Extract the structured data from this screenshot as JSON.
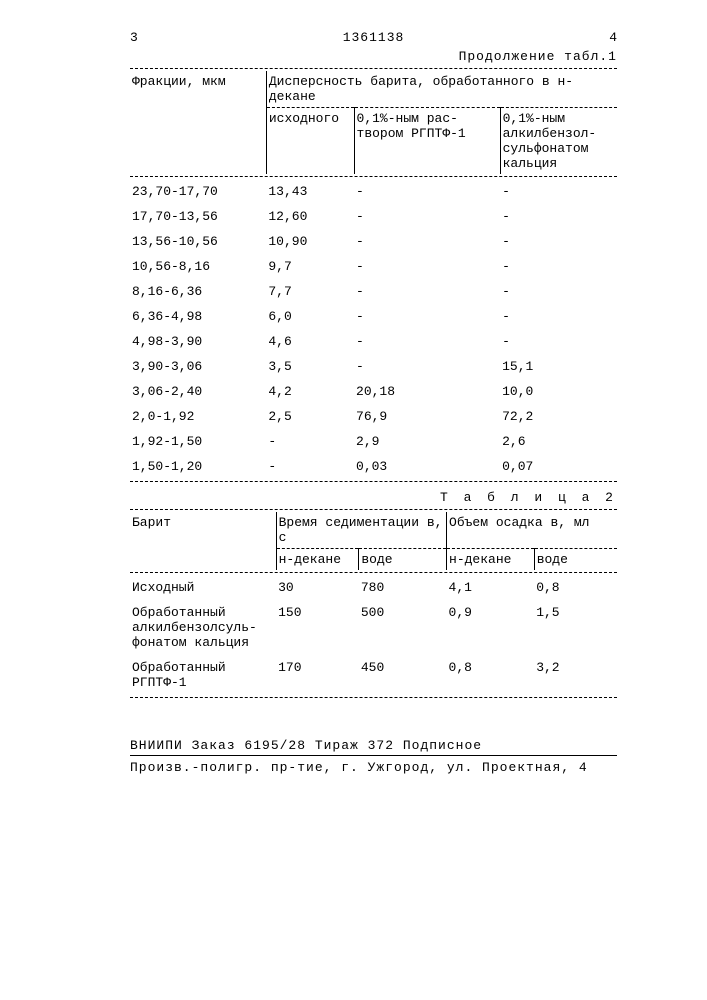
{
  "header": {
    "page_left": "3",
    "doc_number": "1361138",
    "page_right": "4",
    "continuation": "Продолжение табл.1"
  },
  "table1": {
    "col_header_main": "Фракции, мкм",
    "col_header_group": "Дисперсность барита, обработанного в н-декане",
    "sub1": "исходного",
    "sub2": "0,1%-ным рас-\nтвором РГПТФ-1",
    "sub3": "0,1%-ным\nалкилбензол-\nсульфонатом\nкальция",
    "rows": [
      {
        "f": "23,70-17,70",
        "c1": "13,43",
        "c2": "-",
        "c3": "-"
      },
      {
        "f": "17,70-13,56",
        "c1": "12,60",
        "c2": "-",
        "c3": "-"
      },
      {
        "f": "13,56-10,56",
        "c1": "10,90",
        "c2": "-",
        "c3": "-"
      },
      {
        "f": "10,56-8,16",
        "c1": "9,7",
        "c2": "-",
        "c3": "-"
      },
      {
        "f": "8,16-6,36",
        "c1": "7,7",
        "c2": "-",
        "c3": "-"
      },
      {
        "f": "6,36-4,98",
        "c1": "6,0",
        "c2": "-",
        "c3": "-"
      },
      {
        "f": "4,98-3,90",
        "c1": "4,6",
        "c2": "-",
        "c3": "-"
      },
      {
        "f": "3,90-3,06",
        "c1": "3,5",
        "c2": "-",
        "c3": "15,1"
      },
      {
        "f": "3,06-2,40",
        "c1": "4,2",
        "c2": "20,18",
        "c3": "10,0"
      },
      {
        "f": "2,0-1,92",
        "c1": "2,5",
        "c2": "76,9",
        "c3": "72,2"
      },
      {
        "f": "1,92-1,50",
        "c1": "-",
        "c2": "2,9",
        "c3": "2,6"
      },
      {
        "f": "1,50-1,20",
        "c1": "-",
        "c2": "0,03",
        "c3": "0,07"
      }
    ]
  },
  "table2": {
    "title": "Т а б л и ц а   2",
    "col_main": "Барит",
    "group1": "Время седиментации в, с",
    "group2": "Объем осадка в,  мл",
    "sub_a": "н-декане",
    "sub_b": "воде",
    "sub_c": "н-декане",
    "sub_d": "воде",
    "rows": [
      {
        "n": "Исходный",
        "a": "30",
        "b": "780",
        "c": "4,1",
        "d": "0,8"
      },
      {
        "n": "Обработанный алкилбензолсуль-\nфонатом кальция",
        "a": "150",
        "b": "500",
        "c": "0,9",
        "d": "1,5"
      },
      {
        "n": "Обработанный РГПТФ-1",
        "a": "170",
        "b": "450",
        "c": "0,8",
        "d": "3,2"
      }
    ]
  },
  "footer": {
    "line1": "ВНИИПИ Заказ 6195/28      Тираж 372 Подписное",
    "line2": "Произв.-полигр. пр-тие, г. Ужгород, ул. Проектная, 4"
  }
}
